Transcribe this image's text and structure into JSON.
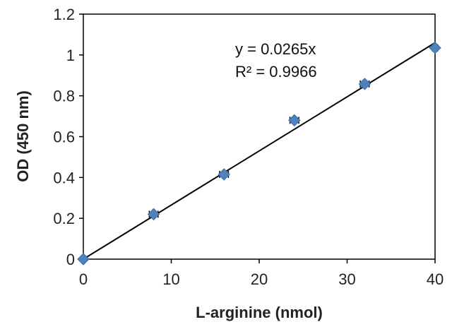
{
  "chart_data": {
    "type": "scatter",
    "xlabel": "L-arginine (nmol)",
    "ylabel": "OD (450 nm)",
    "xlim": [
      0,
      40
    ],
    "ylim": [
      0,
      1.2
    ],
    "x_ticks": [
      0,
      10,
      20,
      30,
      40
    ],
    "y_ticks": [
      0,
      0.2,
      0.4,
      0.6,
      0.8,
      1,
      1.2
    ],
    "x_tick_labels": [
      "0",
      "10",
      "20",
      "30",
      "40"
    ],
    "y_tick_labels": [
      "0",
      "0.2",
      "0.4",
      "0.6",
      "0.8",
      "1",
      "1.2"
    ],
    "grid": false,
    "series": [
      {
        "x": [
          0,
          8,
          16,
          24,
          32,
          40
        ],
        "y": [
          0,
          0.22,
          0.415,
          0.68,
          0.858,
          1.035
        ],
        "error_x": [
          0,
          0.5,
          0.5,
          0.5,
          0.5,
          0.3
        ],
        "marker": "diamond",
        "color": "#4F81BD"
      }
    ],
    "trendline": {
      "type": "linear",
      "slope": 0.0265,
      "intercept": 0,
      "color": "#000000"
    },
    "annotations": {
      "equation": "y = 0.0265x",
      "r_squared": "R² = 0.9966"
    }
  }
}
